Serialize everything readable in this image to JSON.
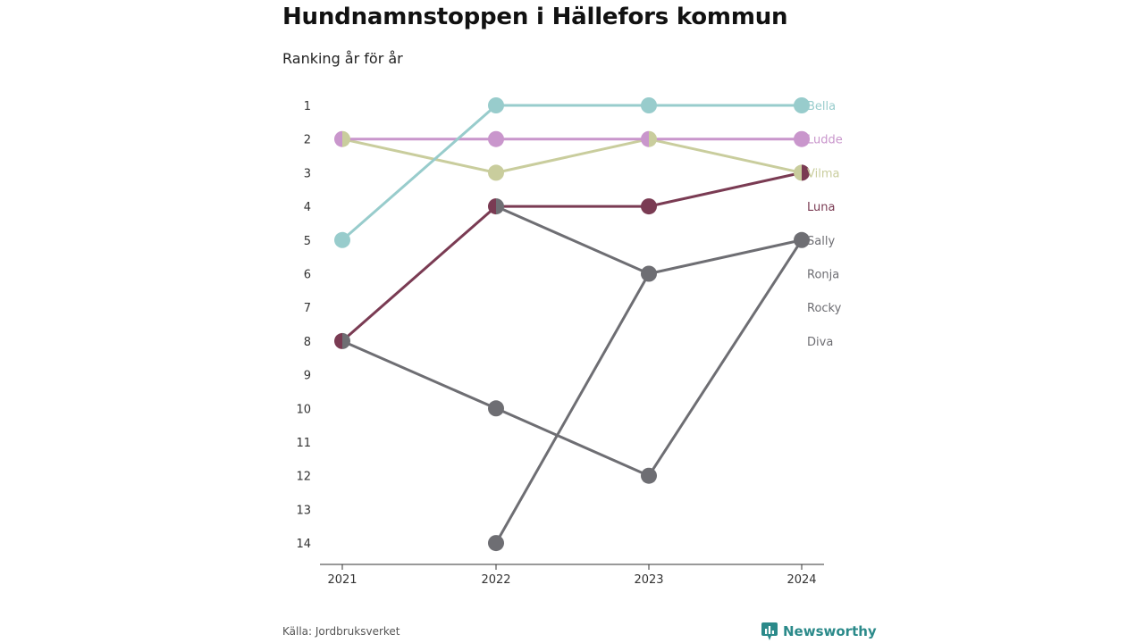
{
  "header": {
    "title": "Hundnamnstoppen i Hällefors kommun",
    "subtitle": "Ranking år för år"
  },
  "footer": {
    "source": "Källa: Jordbruksverket",
    "brand": "Newsworthy",
    "brand_icon": "bar-chart-speech-icon",
    "brand_color": "#2b8a8a"
  },
  "chart_data": {
    "type": "line",
    "title": "Hundnamnstoppen i Hällefors kommun",
    "subtitle": "Ranking år för år",
    "x": [
      "2021",
      "2022",
      "2023",
      "2024"
    ],
    "y_ticks": [
      1,
      2,
      3,
      4,
      5,
      6,
      7,
      8,
      9,
      10,
      11,
      12,
      13,
      14
    ],
    "ylim": [
      1,
      14
    ],
    "y_inverted": true,
    "grid": false,
    "legend": "labels at line ends (right)",
    "series": [
      {
        "name": "Rocky",
        "color": "#6e6e73",
        "values": [
          null,
          14,
          6,
          5
        ]
      },
      {
        "name": "Ronja",
        "color": "#6e6e73",
        "values": [
          null,
          4,
          6,
          null
        ]
      },
      {
        "name": "Sally",
        "color": "#6e6e73",
        "values": [
          8,
          10,
          12,
          5
        ]
      },
      {
        "name": "Diva",
        "color": "#6e6e73",
        "values": [
          null,
          null,
          null,
          null
        ]
      },
      {
        "name": "Luna",
        "color": "#7a3b53",
        "values": [
          8,
          4,
          4,
          3
        ]
      },
      {
        "name": "Vilma",
        "color": "#c9cd9d",
        "values": [
          2,
          3,
          2,
          3
        ]
      },
      {
        "name": "Ludde",
        "color": "#c996cc",
        "values": [
          2,
          2,
          2,
          2
        ]
      },
      {
        "name": "Bella",
        "color": "#98cccc",
        "values": [
          5,
          1,
          1,
          1
        ]
      }
    ]
  }
}
